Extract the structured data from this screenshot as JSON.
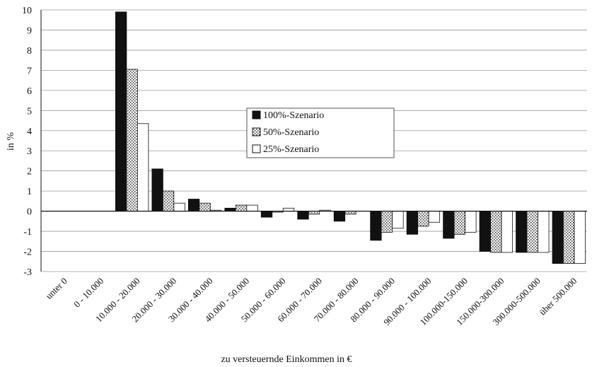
{
  "chart_data": {
    "type": "bar",
    "title": "",
    "xlabel": "zu versteuernde Einkommen in €",
    "ylabel": "in %",
    "ylim": [
      -3,
      10
    ],
    "yticks": [
      10,
      9,
      8,
      7,
      6,
      5,
      4,
      3,
      2,
      1,
      0,
      -1,
      -2,
      -3
    ],
    "grid": true,
    "legend_position": "center-right",
    "categories": [
      "unter 0",
      "0 - 10.000",
      "10.000 - 20.000",
      "20.000 - 30.000",
      "30.000 - 40.000",
      "40.000 - 50.000",
      "50.000 - 60.000",
      "60.000 - 70.000",
      "70.000 - 80.000",
      "80.000 - 90.000",
      "90.000 - 100.000",
      "100.000-150.000",
      "150.000-300.000",
      "300.000-500.000",
      "über 500.000"
    ],
    "series": [
      {
        "name": "100%-Szenario",
        "pattern": "solid",
        "color": "#111111",
        "values": [
          0,
          0,
          9.9,
          2.1,
          0.6,
          0.15,
          -0.3,
          -0.4,
          -0.5,
          -1.45,
          -1.15,
          -1.35,
          -2.0,
          -2.05,
          -2.6
        ]
      },
      {
        "name": "50%-Szenario",
        "pattern": "dotted",
        "color": "#e6e6e6",
        "values": [
          0,
          0,
          7.05,
          1.0,
          0.4,
          0.3,
          -0.05,
          -0.15,
          -0.15,
          -1.05,
          -0.75,
          -1.15,
          -2.05,
          -2.05,
          -2.6
        ]
      },
      {
        "name": "25%-Szenario",
        "pattern": "hollow",
        "color": "#ffffff",
        "values": [
          0,
          0,
          4.35,
          0.4,
          0.05,
          0.3,
          0.15,
          0.05,
          0.0,
          -0.85,
          -0.55,
          -1.05,
          -2.05,
          -2.05,
          -2.6
        ]
      }
    ]
  }
}
